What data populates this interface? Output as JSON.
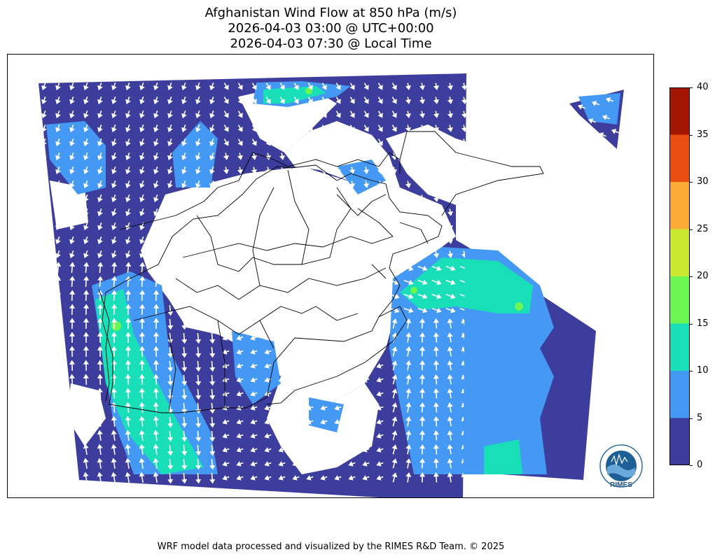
{
  "title": {
    "line1": "Afghanistan Wind Flow at 850 hPa (m/s)",
    "line2": "2026-04-03 03:00 @ UTC+00:00",
    "line3": "2026-04-03 07:30 @ Local Time"
  },
  "colorbar": {
    "ticks": [
      "0",
      "5",
      "10",
      "15",
      "20",
      "25",
      "30",
      "35",
      "40"
    ],
    "colors": [
      "#3d3d9e",
      "#4499f5",
      "#19dfb8",
      "#6bf651",
      "#cbe830",
      "#fbaa36",
      "#ea4e11",
      "#a21602"
    ]
  },
  "logo": {
    "text": "RIMES"
  },
  "footer": "WRF model data processed and visualized by the RIMES R&D Team. © 2025",
  "colors": {
    "calm": "#3d3d9e",
    "light": "#4499f5",
    "moderate": "#19dfb8",
    "strong": "#6bf651",
    "arrow": "#ffffff",
    "border": "#000000"
  }
}
